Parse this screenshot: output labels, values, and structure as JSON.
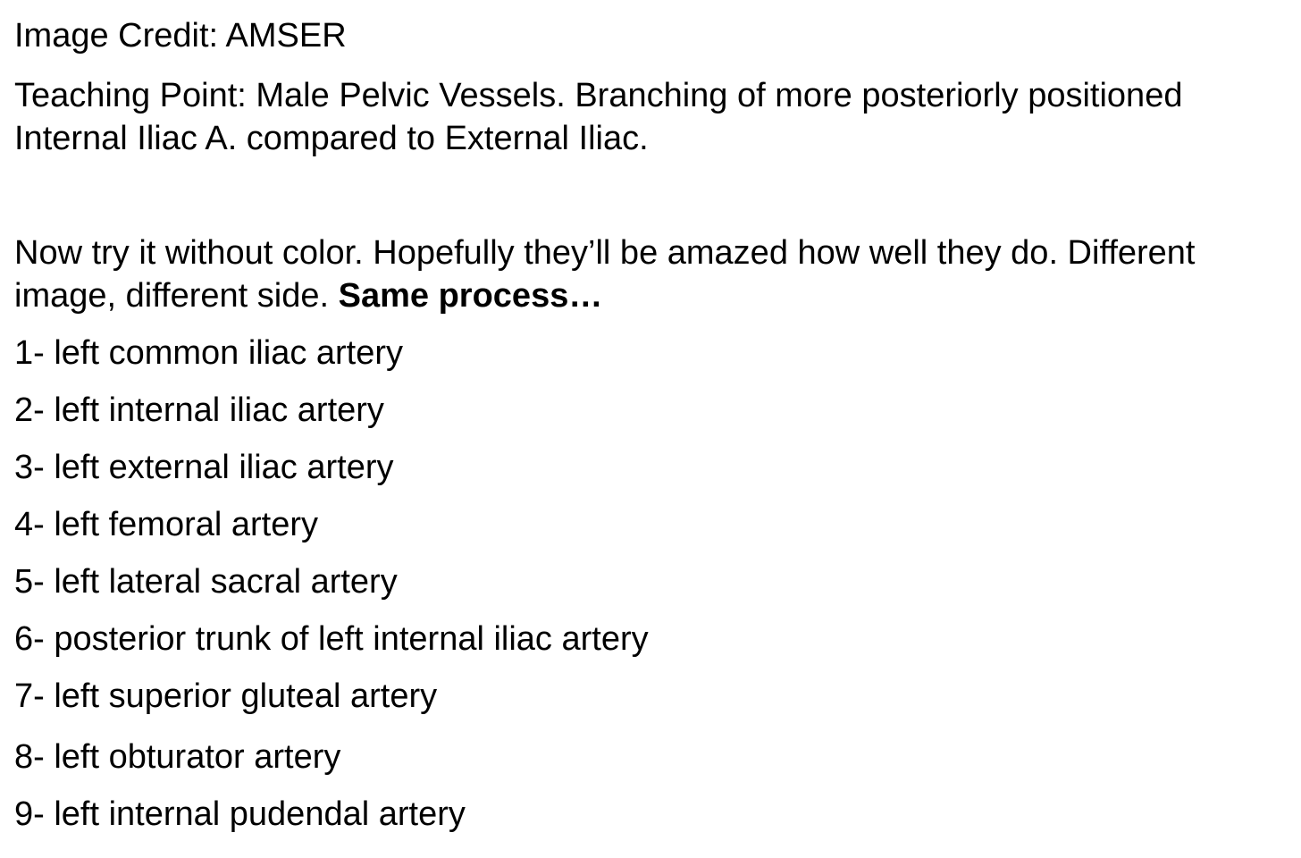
{
  "credit": "Image Credit: AMSER",
  "teaching_point": {
    "line1": "Teaching Point: Male Pelvic Vessels.  Branching of more posteriorly positioned",
    "line2": "Internal Iliac A. compared to External Iliac."
  },
  "instructions": {
    "line1": "Now try it without color. Hopefully they’ll be amazed how well they do. Different",
    "line2_regular": "image, different side. ",
    "line2_bold": "Same process…"
  },
  "labels": [
    "1- left common iliac artery",
    "2- left internal iliac artery",
    "3- left external iliac artery",
    "4- left femoral artery",
    "5- left lateral sacral artery",
    "6- posterior trunk of left internal iliac artery",
    "7- left superior gluteal artery",
    "8- left obturator artery",
    "9- left internal pudendal artery"
  ]
}
